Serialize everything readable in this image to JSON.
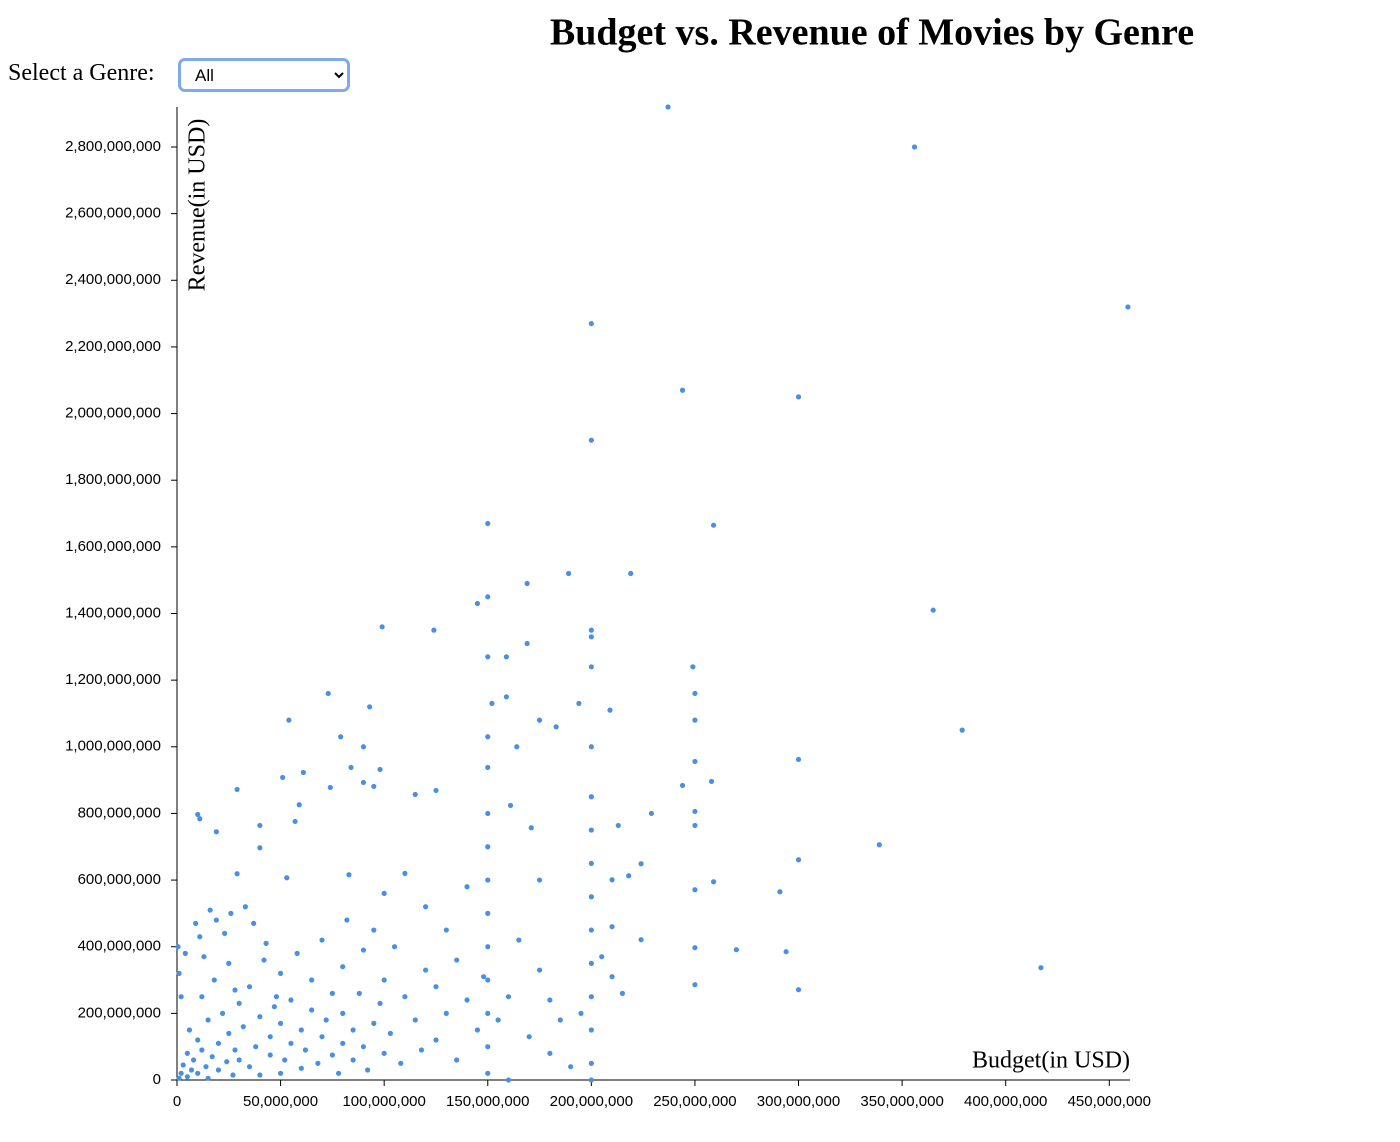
{
  "controls": {
    "label": "Select a Genre:",
    "selected": "All"
  },
  "chart_data": {
    "type": "scatter",
    "title": "Budget vs. Revenue of Movies by Genre",
    "x_label": "Budget(in USD)",
    "y_label": "Revenue(in USD)",
    "color": "#4a90e2",
    "xlim": [
      0,
      460000000
    ],
    "ylim": [
      0,
      2920000000
    ],
    "xticks": [
      0,
      {
        "value": 50000000,
        "label": "50,000,000"
      },
      {
        "value": 100000000,
        "label": "100,000,000"
      },
      {
        "value": 150000000,
        "label": "150,000,000"
      },
      {
        "value": 200000000,
        "label": "200,000,000"
      },
      {
        "value": 250000000,
        "label": "250,000,000"
      },
      {
        "value": 300000000,
        "label": "300,000,000"
      },
      {
        "value": 350000000,
        "label": "350,000,000"
      },
      {
        "value": 400000000,
        "label": "400,000,000"
      },
      {
        "value": 450000000,
        "label": "450,000,000"
      }
    ],
    "yticks": [
      0,
      {
        "value": 200000000,
        "label": "200,000,000"
      },
      {
        "value": 400000000,
        "label": "400,000,000"
      },
      {
        "value": 600000000,
        "label": "600,000,000"
      },
      {
        "value": 800000000,
        "label": "800,000,000"
      },
      {
        "value": 1000000000,
        "label": "1,000,000,000"
      },
      {
        "value": 1200000000,
        "label": "1,200,000,000"
      },
      {
        "value": 1400000000,
        "label": "1,400,000,000"
      },
      {
        "value": 1600000000,
        "label": "1,600,000,000"
      },
      {
        "value": 1800000000,
        "label": "1,800,000,000"
      },
      {
        "value": 2000000000,
        "label": "2,000,000,000"
      },
      {
        "value": 2200000000,
        "label": "2,200,000,000"
      },
      {
        "value": 2400000000,
        "label": "2,400,000,000"
      },
      {
        "value": 2600000000,
        "label": "2,600,000,000"
      },
      {
        "value": 2800000000,
        "label": "2,800,000,000"
      }
    ],
    "x": [
      237000000,
      356000000,
      459000000,
      200000000,
      244000000,
      300000000,
      200000000,
      150000000,
      259000000,
      169000000,
      189000000,
      219000000,
      365000000,
      145000000,
      150000000,
      99000000,
      124000000,
      169000000,
      200000000,
      200000000,
      150000000,
      159000000,
      249000000,
      200000000,
      73000000,
      159000000,
      250000000,
      152000000,
      209000000,
      194000000,
      93000000,
      54000000,
      175000000,
      250000000,
      379000000,
      79000000,
      183000000,
      150000000,
      164000000,
      90000000,
      300000000,
      150000000,
      98000000,
      84000000,
      61000000,
      51000000,
      250000000,
      258000000,
      244000000,
      90000000,
      95000000,
      29000000,
      74000000,
      115000000,
      125000000,
      10000000,
      11000000,
      19000000,
      229000000,
      250000000,
      250000000,
      213000000,
      161000000,
      171000000,
      339000000,
      300000000,
      259000000,
      291000000,
      250000000,
      224000000,
      210000000,
      218000000,
      40000000,
      59000000,
      57000000,
      270000000,
      294000000,
      250000000,
      224000000,
      210000000,
      417000000,
      300000000,
      250000000,
      29000000,
      40000000,
      53000000,
      83000000,
      1000000,
      2000000,
      3000000,
      5000000,
      5000000,
      6000000,
      7000000,
      8000000,
      10000000,
      10000000,
      12000000,
      12000000,
      14000000,
      15000000,
      15000000,
      17000000,
      18000000,
      20000000,
      20000000,
      22000000,
      24000000,
      25000000,
      25000000,
      27000000,
      28000000,
      30000000,
      30000000,
      32000000,
      35000000,
      35000000,
      38000000,
      40000000,
      40000000,
      42000000,
      45000000,
      45000000,
      48000000,
      50000000,
      50000000,
      50000000,
      52000000,
      55000000,
      55000000,
      58000000,
      60000000,
      60000000,
      62000000,
      65000000,
      65000000,
      68000000,
      70000000,
      70000000,
      72000000,
      75000000,
      75000000,
      78000000,
      80000000,
      80000000,
      80000000,
      82000000,
      85000000,
      85000000,
      88000000,
      90000000,
      90000000,
      92000000,
      95000000,
      95000000,
      98000000,
      100000000,
      100000000,
      100000000,
      103000000,
      105000000,
      108000000,
      110000000,
      110000000,
      115000000,
      118000000,
      120000000,
      120000000,
      125000000,
      125000000,
      130000000,
      130000000,
      135000000,
      135000000,
      140000000,
      140000000,
      145000000,
      148000000,
      150000000,
      150000000,
      150000000,
      150000000,
      150000000,
      150000000,
      150000000,
      150000000,
      150000000,
      155000000,
      160000000,
      160000000,
      165000000,
      170000000,
      175000000,
      175000000,
      180000000,
      180000000,
      185000000,
      190000000,
      195000000,
      200000000,
      200000000,
      200000000,
      200000000,
      200000000,
      200000000,
      200000000,
      200000000,
      200000000,
      200000000,
      200000000,
      205000000,
      210000000,
      215000000,
      2000000,
      1000000,
      500000,
      4000000,
      9000000,
      11000000,
      16000000,
      19000000,
      23000000,
      26000000,
      33000000,
      37000000,
      13000000,
      28000000,
      43000000,
      47000000
    ],
    "values": [
      2920000000,
      2800000000,
      2320000000,
      2270000000,
      2070000000,
      2050000000,
      1920000000,
      1670000000,
      1665000000,
      1490000000,
      1520000000,
      1520000000,
      1410000000,
      1430000000,
      1450000000,
      1360000000,
      1350000000,
      1310000000,
      1350000000,
      1330000000,
      1270000000,
      1270000000,
      1240000000,
      1240000000,
      1160000000,
      1150000000,
      1160000000,
      1130000000,
      1110000000,
      1130000000,
      1120000000,
      1080000000,
      1080000000,
      1080000000,
      1050000000,
      1030000000,
      1060000000,
      1030000000,
      1000000000,
      1000000000,
      962000000,
      938000000,
      932000000,
      938000000,
      923000000,
      908000000,
      956000000,
      896000000,
      884000000,
      893000000,
      881000000,
      872000000,
      878000000,
      857000000,
      869000000,
      797000000,
      784000000,
      745000000,
      800000000,
      806000000,
      764000000,
      764000000,
      824000000,
      757000000,
      706000000,
      661000000,
      595000000,
      565000000,
      571000000,
      649000000,
      601000000,
      613000000,
      764000000,
      826000000,
      776000000,
      391000000,
      385000000,
      397000000,
      421000000,
      460000000,
      337000000,
      271000000,
      286000000,
      619000000,
      697000000,
      607000000,
      616000000,
      5000000,
      20000000,
      45000000,
      10000000,
      80000000,
      150000000,
      30000000,
      60000000,
      120000000,
      20000000,
      90000000,
      250000000,
      40000000,
      180000000,
      5000000,
      70000000,
      300000000,
      110000000,
      30000000,
      200000000,
      55000000,
      140000000,
      350000000,
      15000000,
      90000000,
      230000000,
      60000000,
      160000000,
      40000000,
      280000000,
      100000000,
      190000000,
      15000000,
      360000000,
      75000000,
      130000000,
      250000000,
      20000000,
      170000000,
      320000000,
      60000000,
      110000000,
      240000000,
      380000000,
      35000000,
      150000000,
      90000000,
      210000000,
      300000000,
      50000000,
      130000000,
      420000000,
      180000000,
      75000000,
      260000000,
      20000000,
      110000000,
      340000000,
      200000000,
      480000000,
      60000000,
      150000000,
      260000000,
      100000000,
      390000000,
      30000000,
      170000000,
      450000000,
      230000000,
      80000000,
      300000000,
      560000000,
      140000000,
      400000000,
      50000000,
      250000000,
      620000000,
      180000000,
      90000000,
      330000000,
      520000000,
      120000000,
      280000000,
      200000000,
      450000000,
      60000000,
      360000000,
      240000000,
      580000000,
      150000000,
      310000000,
      20000000,
      100000000,
      200000000,
      300000000,
      400000000,
      500000000,
      600000000,
      700000000,
      800000000,
      180000000,
      250000000,
      0,
      420000000,
      130000000,
      330000000,
      600000000,
      80000000,
      240000000,
      180000000,
      40000000,
      200000000,
      0,
      50000000,
      150000000,
      250000000,
      350000000,
      450000000,
      550000000,
      650000000,
      750000000,
      850000000,
      1000000000,
      370000000,
      310000000,
      260000000,
      250000000,
      320000000,
      400000000,
      380000000,
      470000000,
      430000000,
      510000000,
      480000000,
      440000000,
      500000000,
      520000000,
      470000000,
      370000000,
      270000000,
      410000000,
      220000000
    ]
  }
}
